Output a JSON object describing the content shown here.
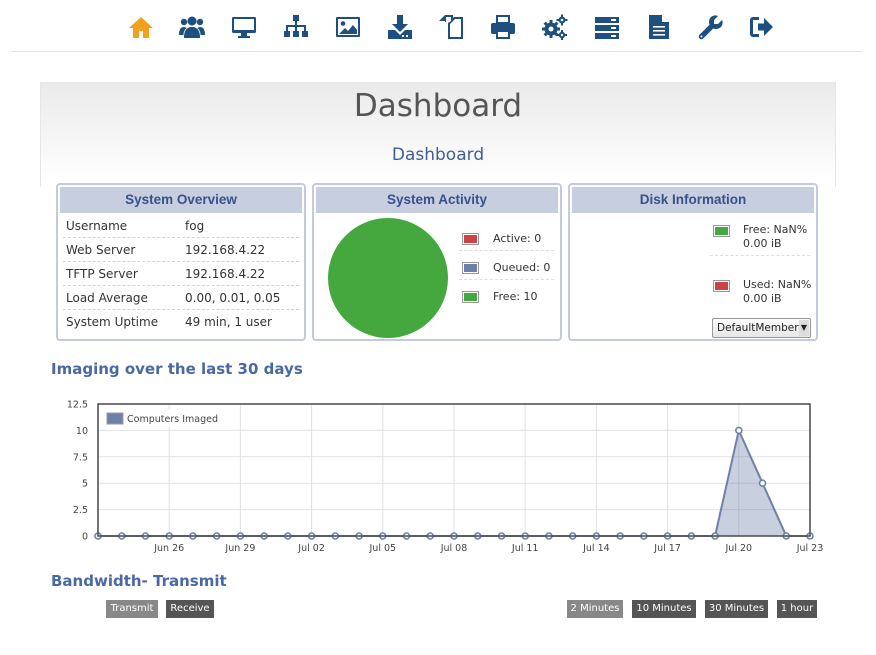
{
  "nav": {
    "items": [
      {
        "icon": "home-icon",
        "color": "#f0a11f"
      },
      {
        "icon": "users-icon",
        "color": "#1d4f80"
      },
      {
        "icon": "monitor-icon",
        "color": "#1d4f80"
      },
      {
        "icon": "sitemap-icon",
        "color": "#1d4f80"
      },
      {
        "icon": "image-icon",
        "color": "#1d4f80"
      },
      {
        "icon": "download-icon",
        "color": "#1d4f80"
      },
      {
        "icon": "copy-icon",
        "color": "#1d4f80"
      },
      {
        "icon": "printer-icon",
        "color": "#1d4f80"
      },
      {
        "icon": "gears-icon",
        "color": "#1d4f80"
      },
      {
        "icon": "server-icon",
        "color": "#1d4f80"
      },
      {
        "icon": "document-icon",
        "color": "#1d4f80"
      },
      {
        "icon": "wrench-icon",
        "color": "#1d4f80"
      },
      {
        "icon": "logout-icon",
        "color": "#1d4f80"
      }
    ]
  },
  "header": {
    "title": "Dashboard",
    "subtitle": "Dashboard"
  },
  "overview": {
    "title": "System Overview",
    "rows": [
      {
        "key": "Username",
        "value": "fog"
      },
      {
        "key": "Web Server",
        "value": "192.168.4.22"
      },
      {
        "key": "TFTP Server",
        "value": "192.168.4.22"
      },
      {
        "key": "Load Average",
        "value": "0.00, 0.01, 0.05"
      },
      {
        "key": "System Uptime",
        "value": "49 min, 1 user"
      }
    ]
  },
  "activity": {
    "title": "System Activity",
    "legend": [
      {
        "label": "Active: 0",
        "color": "#cc4444"
      },
      {
        "label": "Queued: 0",
        "color": "#6f80a8"
      },
      {
        "label": "Free: 10",
        "color": "#45a83f"
      }
    ],
    "pie_color": "#45a83f"
  },
  "disk": {
    "title": "Disk Information",
    "free_line1": "Free: NaN%",
    "free_line2": "0.00 iB",
    "used_line1": "Used: NaN%",
    "used_line2": "0.00 iB",
    "free_color": "#45a83f",
    "used_color": "#cc4444",
    "node_select": "DefaultMember *"
  },
  "imaging": {
    "title": "Imaging over the last 30 days"
  },
  "chart_data": {
    "type": "area",
    "title": "",
    "xlabel": "",
    "ylabel": "",
    "series": [
      {
        "name": "Computers Imaged",
        "color": "#6f80a8"
      }
    ],
    "x": [
      "Jun 23",
      "Jun 24",
      "Jun 25",
      "Jun 26",
      "Jun 27",
      "Jun 28",
      "Jun 29",
      "Jun 30",
      "Jul 01",
      "Jul 02",
      "Jul 03",
      "Jul 04",
      "Jul 05",
      "Jul 06",
      "Jul 07",
      "Jul 08",
      "Jul 09",
      "Jul 10",
      "Jul 11",
      "Jul 12",
      "Jul 13",
      "Jul 14",
      "Jul 15",
      "Jul 16",
      "Jul 17",
      "Jul 18",
      "Jul 19",
      "Jul 20",
      "Jul 21",
      "Jul 22",
      "Jul 23"
    ],
    "values": [
      0,
      0,
      0,
      0,
      0,
      0,
      0,
      0,
      0,
      0,
      0,
      0,
      0,
      0,
      0,
      0,
      0,
      0,
      0,
      0,
      0,
      0,
      0,
      0,
      0,
      0,
      0,
      10,
      5,
      0,
      0
    ],
    "x_tick_labels": [
      "Jun 26",
      "Jun 29",
      "Jul 02",
      "Jul 05",
      "Jul 08",
      "Jul 11",
      "Jul 14",
      "Jul 17",
      "Jul 20",
      "Jul 23"
    ],
    "y_tick_labels": [
      "0",
      "2.5",
      "5",
      "7.5",
      "10",
      "12.5"
    ],
    "ylim": [
      0,
      12.5
    ],
    "grid": true,
    "legend_position": "top-left"
  },
  "bandwidth": {
    "title": "Bandwidth- Transmit",
    "transmit_label": "Transmit",
    "receive_label": "Receive",
    "range_buttons": [
      "2 Minutes",
      "10 Minutes",
      "30 Minutes",
      "1 hour"
    ]
  }
}
